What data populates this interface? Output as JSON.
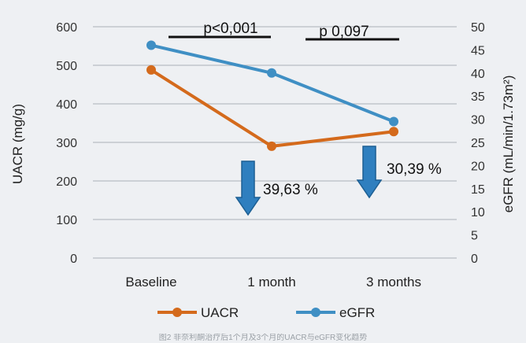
{
  "chart_data": {
    "type": "line",
    "title": "",
    "categories": [
      "Baseline",
      "1 month",
      "3 months"
    ],
    "ylabel_left": "UACR (mg/g)",
    "ylabel_right": "eGFR (mL/min/1.73m²)",
    "ylim_left": [
      0,
      600
    ],
    "ylim_right": [
      0,
      50
    ],
    "yticks_left": [
      "0",
      "100",
      "200",
      "300",
      "400",
      "500",
      "600"
    ],
    "yticks_right": [
      "0",
      "5",
      "10",
      "15",
      "20",
      "25",
      "30",
      "35",
      "40",
      "45",
      "50"
    ],
    "grid": true,
    "legend_position": "bottom",
    "series": [
      {
        "name": "UACR",
        "axis": "left",
        "color": "#d46a1c",
        "values": [
          488,
          290,
          328
        ]
      },
      {
        "name": "eGFR",
        "axis": "right",
        "color": "#3f8fc4",
        "values": [
          46,
          40,
          29.5
        ]
      }
    ],
    "annotations": {
      "pvalue_1": "p<0,001",
      "pvalue_2": "p 0,097",
      "change_1": "39,63 %",
      "change_2": "30,39 %",
      "arrow_color": "#2f7fbf"
    },
    "caption": "图2  非奈利酮治疗后1个月及3个月的UACR与eGFR变化趋势"
  }
}
